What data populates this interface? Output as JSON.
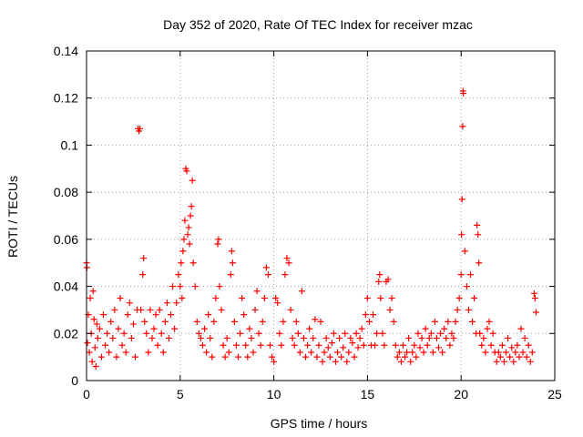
{
  "chart_data": {
    "type": "scatter",
    "title": "Day 352 of 2020, Rate Of TEC Index for receiver mzac",
    "xlabel": "GPS time / hours",
    "ylabel": "ROTI / TECUs",
    "xlim": [
      0,
      25
    ],
    "ylim": [
      0,
      0.14
    ],
    "x_ticks": [
      0,
      5,
      10,
      15,
      20,
      25
    ],
    "y_ticks": [
      0,
      0.02,
      0.04,
      0.06,
      0.08,
      0.1,
      0.12,
      0.14
    ],
    "x_tick_labels": [
      "0",
      "5",
      "10",
      "15",
      "20",
      "25"
    ],
    "y_tick_labels": [
      "0",
      "0.02",
      "0.04",
      "0.06",
      "0.08",
      "0.1",
      "0.12",
      "0.14"
    ],
    "grid": true,
    "marker": "+",
    "marker_color": "#ff0000",
    "series": [
      {
        "name": "ROTI",
        "points": [
          [
            0.0,
            0.05
          ],
          [
            0.02,
            0.048
          ],
          [
            0.05,
            0.016
          ],
          [
            0.1,
            0.028
          ],
          [
            0.15,
            0.012
          ],
          [
            0.2,
            0.035
          ],
          [
            0.25,
            0.02
          ],
          [
            0.3,
            0.008
          ],
          [
            0.35,
            0.038
          ],
          [
            0.4,
            0.026
          ],
          [
            0.45,
            0.014
          ],
          [
            0.5,
            0.006
          ],
          [
            0.55,
            0.024
          ],
          [
            0.6,
            0.018
          ],
          [
            0.7,
            0.022
          ],
          [
            0.8,
            0.01
          ],
          [
            0.9,
            0.028
          ],
          [
            1.0,
            0.015
          ],
          [
            1.1,
            0.02
          ],
          [
            1.2,
            0.012
          ],
          [
            1.3,
            0.025
          ],
          [
            1.4,
            0.018
          ],
          [
            1.5,
            0.03
          ],
          [
            1.6,
            0.01
          ],
          [
            1.7,
            0.022
          ],
          [
            1.8,
            0.035
          ],
          [
            1.9,
            0.015
          ],
          [
            2.0,
            0.02
          ],
          [
            2.1,
            0.012
          ],
          [
            2.2,
            0.028
          ],
          [
            2.3,
            0.033
          ],
          [
            2.4,
            0.018
          ],
          [
            2.5,
            0.024
          ],
          [
            2.6,
            0.01
          ],
          [
            2.7,
            0.03
          ],
          [
            2.75,
            0.107
          ],
          [
            2.8,
            0.106
          ],
          [
            2.85,
            0.107
          ],
          [
            2.9,
            0.03
          ],
          [
            3.0,
            0.045
          ],
          [
            3.05,
            0.052
          ],
          [
            3.1,
            0.025
          ],
          [
            3.2,
            0.02
          ],
          [
            3.3,
            0.012
          ],
          [
            3.4,
            0.03
          ],
          [
            3.5,
            0.018
          ],
          [
            3.6,
            0.022
          ],
          [
            3.7,
            0.028
          ],
          [
            3.8,
            0.015
          ],
          [
            3.9,
            0.03
          ],
          [
            4.0,
            0.02
          ],
          [
            4.1,
            0.012
          ],
          [
            4.2,
            0.025
          ],
          [
            4.3,
            0.033
          ],
          [
            4.4,
            0.018
          ],
          [
            4.5,
            0.028
          ],
          [
            4.6,
            0.04
          ],
          [
            4.7,
            0.022
          ],
          [
            4.8,
            0.033
          ],
          [
            4.9,
            0.045
          ],
          [
            5.0,
            0.04
          ],
          [
            5.05,
            0.05
          ],
          [
            5.1,
            0.035
          ],
          [
            5.15,
            0.055
          ],
          [
            5.2,
            0.06
          ],
          [
            5.25,
            0.068
          ],
          [
            5.3,
            0.09
          ],
          [
            5.35,
            0.089
          ],
          [
            5.4,
            0.062
          ],
          [
            5.45,
            0.065
          ],
          [
            5.5,
            0.058
          ],
          [
            5.55,
            0.07
          ],
          [
            5.6,
            0.074
          ],
          [
            5.65,
            0.085
          ],
          [
            5.7,
            0.05
          ],
          [
            5.8,
            0.04
          ],
          [
            5.9,
            0.025
          ],
          [
            6.0,
            0.02
          ],
          [
            6.1,
            0.018
          ],
          [
            6.2,
            0.015
          ],
          [
            6.3,
            0.022
          ],
          [
            6.4,
            0.012
          ],
          [
            6.5,
            0.028
          ],
          [
            6.6,
            0.018
          ],
          [
            6.7,
            0.01
          ],
          [
            6.8,
            0.025
          ],
          [
            6.9,
            0.035
          ],
          [
            7.0,
            0.058
          ],
          [
            7.05,
            0.06
          ],
          [
            7.1,
            0.04
          ],
          [
            7.2,
            0.03
          ],
          [
            7.3,
            0.015
          ],
          [
            7.4,
            0.01
          ],
          [
            7.5,
            0.018
          ],
          [
            7.6,
            0.012
          ],
          [
            7.7,
            0.045
          ],
          [
            7.75,
            0.055
          ],
          [
            7.8,
            0.05
          ],
          [
            7.9,
            0.025
          ],
          [
            8.0,
            0.015
          ],
          [
            8.1,
            0.01
          ],
          [
            8.2,
            0.02
          ],
          [
            8.3,
            0.035
          ],
          [
            8.4,
            0.028
          ],
          [
            8.5,
            0.015
          ],
          [
            8.6,
            0.01
          ],
          [
            8.7,
            0.022
          ],
          [
            8.8,
            0.018
          ],
          [
            8.9,
            0.012
          ],
          [
            9.0,
            0.03
          ],
          [
            9.1,
            0.038
          ],
          [
            9.2,
            0.02
          ],
          [
            9.3,
            0.015
          ],
          [
            9.4,
            0.025
          ],
          [
            9.5,
            0.035
          ],
          [
            9.6,
            0.048
          ],
          [
            9.7,
            0.045
          ],
          [
            9.8,
            0.015
          ],
          [
            9.9,
            0.01
          ],
          [
            10.0,
            0.008
          ],
          [
            10.1,
            0.035
          ],
          [
            10.2,
            0.033
          ],
          [
            10.3,
            0.02
          ],
          [
            10.4,
            0.015
          ],
          [
            10.5,
            0.025
          ],
          [
            10.6,
            0.045
          ],
          [
            10.7,
            0.052
          ],
          [
            10.8,
            0.05
          ],
          [
            10.9,
            0.03
          ],
          [
            11.0,
            0.018
          ],
          [
            11.1,
            0.015
          ],
          [
            11.2,
            0.025
          ],
          [
            11.3,
            0.02
          ],
          [
            11.4,
            0.012
          ],
          [
            11.5,
            0.038
          ],
          [
            11.6,
            0.018
          ],
          [
            11.7,
            0.01
          ],
          [
            11.8,
            0.015
          ],
          [
            11.9,
            0.022
          ],
          [
            12.0,
            0.012
          ],
          [
            12.1,
            0.018
          ],
          [
            12.2,
            0.026
          ],
          [
            12.3,
            0.01
          ],
          [
            12.4,
            0.015
          ],
          [
            12.5,
            0.025
          ],
          [
            12.6,
            0.008
          ],
          [
            12.7,
            0.012
          ],
          [
            12.8,
            0.018
          ],
          [
            12.9,
            0.014
          ],
          [
            13.0,
            0.01
          ],
          [
            13.1,
            0.016
          ],
          [
            13.2,
            0.02
          ],
          [
            13.3,
            0.008
          ],
          [
            13.4,
            0.012
          ],
          [
            13.5,
            0.018
          ],
          [
            13.6,
            0.01
          ],
          [
            13.7,
            0.014
          ],
          [
            13.8,
            0.02
          ],
          [
            13.9,
            0.008
          ],
          [
            14.0,
            0.012
          ],
          [
            14.1,
            0.018
          ],
          [
            14.2,
            0.016
          ],
          [
            14.3,
            0.01
          ],
          [
            14.4,
            0.02
          ],
          [
            14.5,
            0.014
          ],
          [
            14.6,
            0.018
          ],
          [
            14.7,
            0.022
          ],
          [
            14.8,
            0.015
          ],
          [
            14.9,
            0.028
          ],
          [
            15.0,
            0.035
          ],
          [
            15.1,
            0.025
          ],
          [
            15.2,
            0.015
          ],
          [
            15.3,
            0.028
          ],
          [
            15.4,
            0.015
          ],
          [
            15.5,
            0.02
          ],
          [
            15.6,
            0.042
          ],
          [
            15.65,
            0.045
          ],
          [
            15.7,
            0.035
          ],
          [
            15.8,
            0.02
          ],
          [
            15.9,
            0.015
          ],
          [
            16.0,
            0.042
          ],
          [
            16.1,
            0.043
          ],
          [
            16.2,
            0.03
          ],
          [
            16.3,
            0.035
          ],
          [
            16.4,
            0.025
          ],
          [
            16.5,
            0.015
          ],
          [
            16.6,
            0.01
          ],
          [
            16.7,
            0.012
          ],
          [
            16.8,
            0.008
          ],
          [
            16.9,
            0.015
          ],
          [
            17.0,
            0.01
          ],
          [
            17.1,
            0.012
          ],
          [
            17.2,
            0.018
          ],
          [
            17.3,
            0.008
          ],
          [
            17.4,
            0.012
          ],
          [
            17.5,
            0.015
          ],
          [
            17.6,
            0.01
          ],
          [
            17.7,
            0.02
          ],
          [
            17.8,
            0.014
          ],
          [
            17.9,
            0.018
          ],
          [
            18.0,
            0.012
          ],
          [
            18.1,
            0.022
          ],
          [
            18.2,
            0.015
          ],
          [
            18.3,
            0.018
          ],
          [
            18.4,
            0.02
          ],
          [
            18.5,
            0.012
          ],
          [
            18.6,
            0.025
          ],
          [
            18.7,
            0.018
          ],
          [
            18.8,
            0.014
          ],
          [
            18.9,
            0.02
          ],
          [
            19.0,
            0.012
          ],
          [
            19.1,
            0.022
          ],
          [
            19.2,
            0.018
          ],
          [
            19.3,
            0.025
          ],
          [
            19.4,
            0.015
          ],
          [
            19.5,
            0.02
          ],
          [
            19.6,
            0.018
          ],
          [
            19.7,
            0.025
          ],
          [
            19.8,
            0.03
          ],
          [
            19.9,
            0.035
          ],
          [
            20.0,
            0.045
          ],
          [
            20.02,
            0.062
          ],
          [
            20.05,
            0.077
          ],
          [
            20.08,
            0.108
          ],
          [
            20.1,
            0.123
          ],
          [
            20.12,
            0.122
          ],
          [
            20.2,
            0.055
          ],
          [
            20.3,
            0.04
          ],
          [
            20.4,
            0.03
          ],
          [
            20.5,
            0.045
          ],
          [
            20.6,
            0.025
          ],
          [
            20.7,
            0.035
          ],
          [
            20.8,
            0.02
          ],
          [
            20.85,
            0.066
          ],
          [
            20.9,
            0.062
          ],
          [
            20.95,
            0.05
          ],
          [
            21.0,
            0.02
          ],
          [
            21.1,
            0.015
          ],
          [
            21.2,
            0.018
          ],
          [
            21.3,
            0.012
          ],
          [
            21.4,
            0.022
          ],
          [
            21.5,
            0.025
          ],
          [
            21.6,
            0.015
          ],
          [
            21.7,
            0.02
          ],
          [
            21.8,
            0.012
          ],
          [
            21.9,
            0.008
          ],
          [
            22.0,
            0.012
          ],
          [
            22.1,
            0.01
          ],
          [
            22.2,
            0.015
          ],
          [
            22.3,
            0.008
          ],
          [
            22.4,
            0.012
          ],
          [
            22.5,
            0.018
          ],
          [
            22.6,
            0.01
          ],
          [
            22.7,
            0.014
          ],
          [
            22.8,
            0.008
          ],
          [
            22.9,
            0.012
          ],
          [
            23.0,
            0.015
          ],
          [
            23.1,
            0.01
          ],
          [
            23.2,
            0.022
          ],
          [
            23.3,
            0.012
          ],
          [
            23.4,
            0.018
          ],
          [
            23.5,
            0.01
          ],
          [
            23.6,
            0.015
          ],
          [
            23.7,
            0.008
          ],
          [
            23.8,
            0.012
          ],
          [
            23.9,
            0.037
          ],
          [
            23.95,
            0.035
          ],
          [
            24.0,
            0.029
          ]
        ]
      }
    ]
  }
}
